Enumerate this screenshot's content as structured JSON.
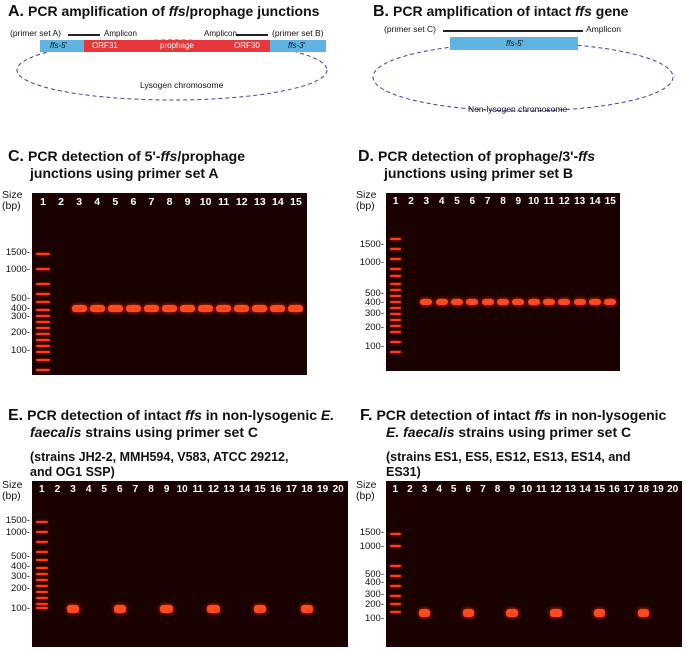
{
  "panelA": {
    "letter": "A.",
    "title_pre": "PCR amplification of ",
    "title_italic": "ffs",
    "title_post": "/prophage junctions",
    "primer_left": "(primer set A)",
    "primer_right": "(primer set B)",
    "amplicon_left": "Amplicon",
    "amplicon_right": "Amplicon",
    "seg_ffs5": "ffs-5'",
    "seg_orf31": "ORF31",
    "seg_prophage": "prophage",
    "seg_orf30": "ORF30",
    "seg_ffs3": "ffs-3'",
    "chromosome": "Lysogen chromosome"
  },
  "panelB": {
    "letter": "B.",
    "title_pre": "PCR amplification of intact ",
    "title_italic": "ffs",
    "title_post": " gene",
    "primer": "(primer set C)",
    "amplicon": "Amplicon",
    "seg_ffs5": "ffs-5'",
    "chromosome": "Non-lysogen chromosome"
  },
  "panelC": {
    "letter": "C.",
    "title_line1_pre": "PCR detection of 5'-",
    "title_line1_italic": "ffs",
    "title_line1_post": "/prophage",
    "title_line2": "junctions using primer set A",
    "size_label": "Size",
    "bp_label": "(bp)",
    "lanes": [
      "1",
      "2",
      "3",
      "4",
      "5",
      "6",
      "7",
      "8",
      "9",
      "10",
      "11",
      "12",
      "13",
      "14",
      "15"
    ],
    "sizes": [
      "1500-",
      "1000-",
      "500-",
      "400-",
      "300-",
      "200-",
      "100-"
    ]
  },
  "panelD": {
    "letter": "D.",
    "title_line1_pre": "PCR detection of prophage/3'-",
    "title_line1_italic": "ffs",
    "title_line2": "junctions using primer set B",
    "size_label": "Size",
    "bp_label": "(bp)",
    "lanes": [
      "1",
      "2",
      "3",
      "4",
      "5",
      "6",
      "7",
      "8",
      "9",
      "10",
      "11",
      "12",
      "13",
      "14",
      "15"
    ],
    "sizes": [
      "1500-",
      "1000-",
      "500-",
      "400-",
      "300-",
      "200-",
      "100-"
    ]
  },
  "panelE": {
    "letter": "E.",
    "title_line1_pre": "PCR detection of intact ",
    "title_line1_italic": "ffs",
    "title_line1_post": " in non-lysogenic ",
    "title_line1_italic2": "E.",
    "title_line2_italic": "faecalis",
    "title_line2_post": " strains using primer set C",
    "strains_line1": "(strains JH2-2, MMH594, V583, ATCC 29212,",
    "strains_line2": "and OG1 SSP)",
    "size_label": "Size",
    "bp_label": "(bp)",
    "lanes": [
      "1",
      "2",
      "3",
      "4",
      "5",
      "6",
      "7",
      "8",
      "9",
      "10",
      "11",
      "12",
      "13",
      "14",
      "15",
      "16",
      "17",
      "18",
      "19",
      "20"
    ],
    "sizes": [
      "1500-",
      "1000-",
      "500-",
      "400-",
      "300-",
      "200-",
      "100-"
    ]
  },
  "panelF": {
    "letter": "F.",
    "title_line1_pre": "PCR detection of intact ",
    "title_line1_italic": "ffs",
    "title_line1_post": " in non-lysogenic",
    "title_line2_italic": "E. faecalis",
    "title_line2_post": " strains using primer set C",
    "strains_line1": "(strains ES1, ES5, ES12, ES13, ES14, and",
    "strains_line2": "ES31)",
    "size_label": "Size",
    "bp_label": "(bp)",
    "lanes": [
      "1",
      "2",
      "3",
      "4",
      "5",
      "6",
      "7",
      "8",
      "9",
      "10",
      "11",
      "12",
      "13",
      "14",
      "15",
      "16",
      "17",
      "18",
      "19",
      "20"
    ],
    "sizes": [
      "1500-",
      "1000-",
      "500-",
      "400-",
      "300-",
      "200-",
      "100-"
    ]
  }
}
